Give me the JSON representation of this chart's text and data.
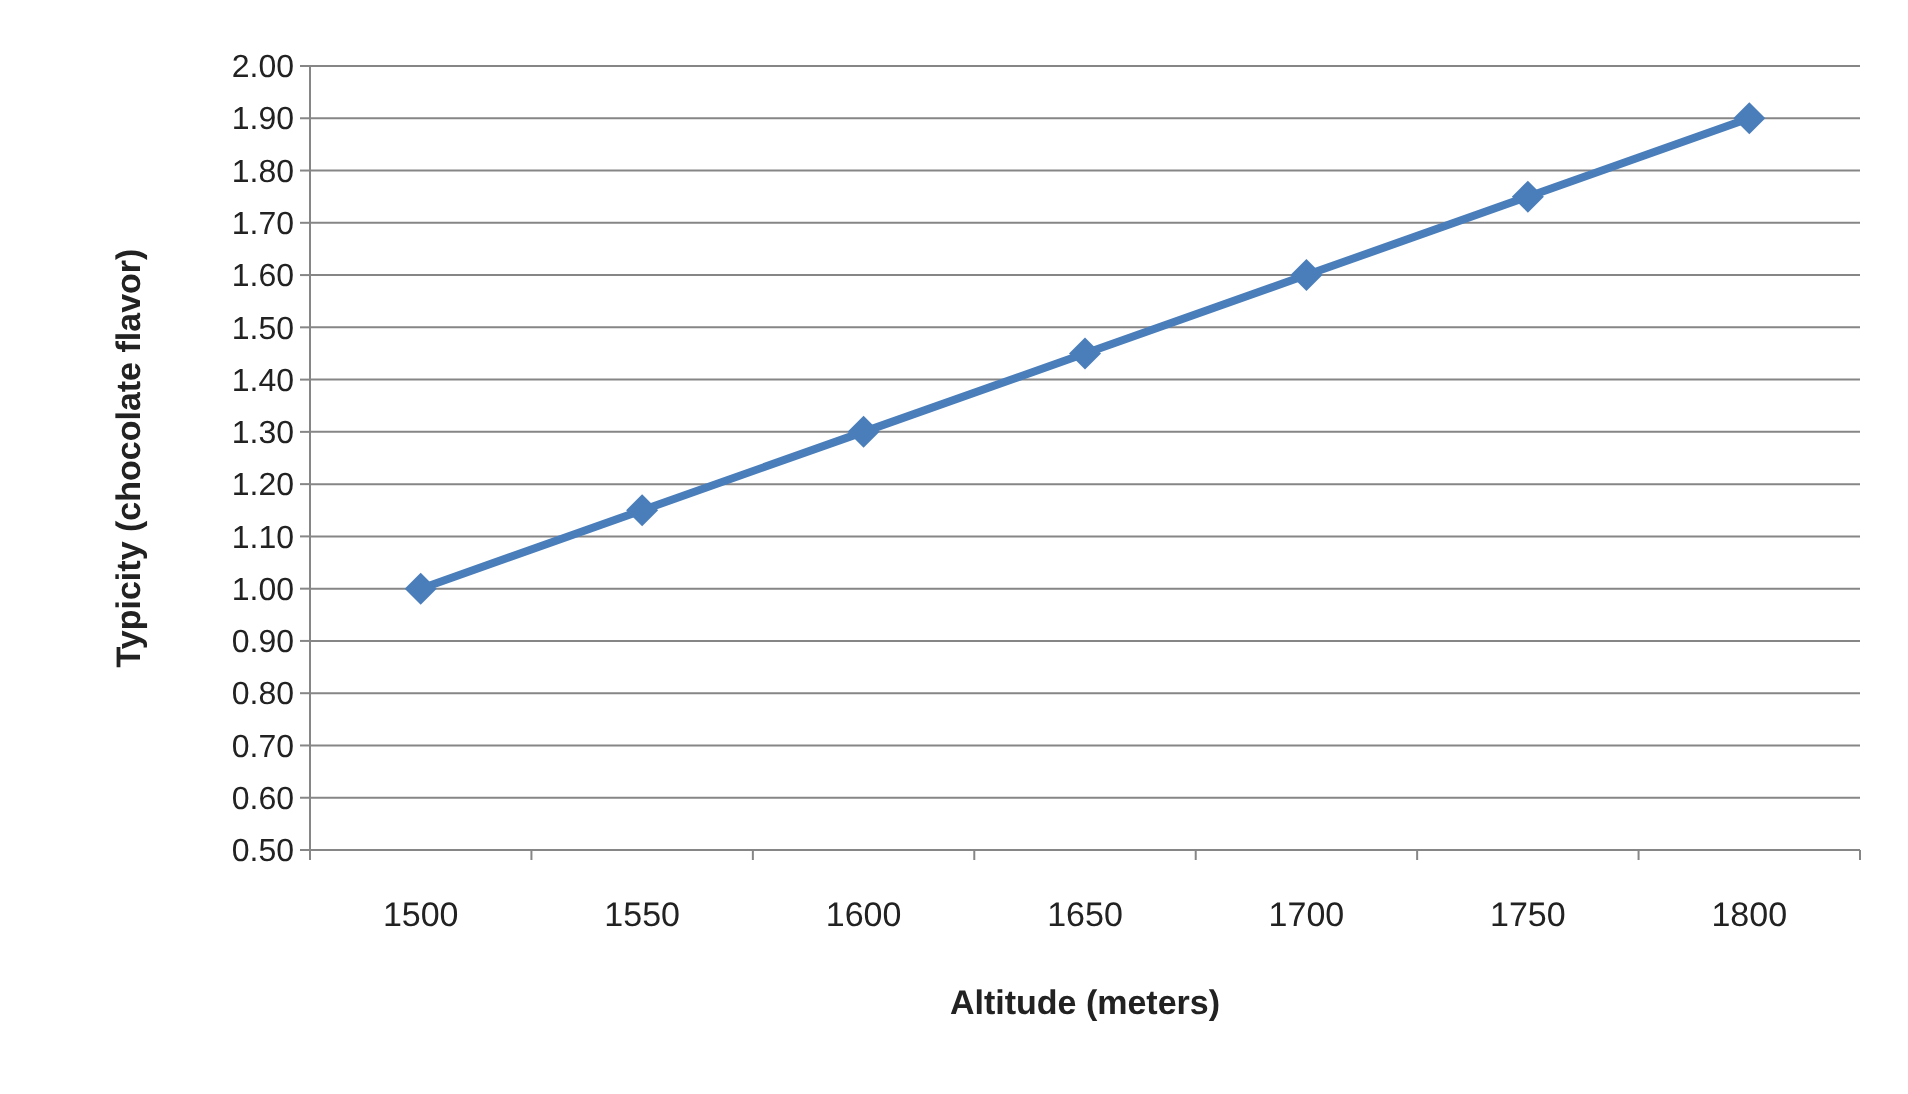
{
  "chart_data": {
    "type": "line",
    "xlabel": "Altitude (meters)",
    "ylabel": "Typicity (chocolate flavor)",
    "categories": [
      "1500",
      "1550",
      "1600",
      "1650",
      "1700",
      "1750",
      "1800"
    ],
    "series": [
      {
        "color": "#4a7ebb",
        "values": [
          1.0,
          1.15,
          1.3,
          1.45,
          1.6,
          1.75,
          1.9
        ]
      }
    ],
    "ylim": [
      0.5,
      2.0
    ],
    "yticks": [
      {
        "value": 0.5,
        "label": "0.50"
      },
      {
        "value": 0.6,
        "label": "0.60"
      },
      {
        "value": 0.7,
        "label": "0.70"
      },
      {
        "value": 0.8,
        "label": "0.80"
      },
      {
        "value": 0.9,
        "label": "0.90"
      },
      {
        "value": 1.0,
        "label": "1.00"
      },
      {
        "value": 1.1,
        "label": "1.10"
      },
      {
        "value": 1.2,
        "label": "1.20"
      },
      {
        "value": 1.3,
        "label": "1.30"
      },
      {
        "value": 1.4,
        "label": "1.40"
      },
      {
        "value": 1.5,
        "label": "1.50"
      },
      {
        "value": 1.6,
        "label": "1.60"
      },
      {
        "value": 1.7,
        "label": "1.70"
      },
      {
        "value": 1.8,
        "label": "1.80"
      },
      {
        "value": 1.9,
        "label": "1.90"
      },
      {
        "value": 2.0,
        "label": "2.00"
      }
    ],
    "grid": "y",
    "marker": "diamond",
    "line_style": "solid"
  }
}
